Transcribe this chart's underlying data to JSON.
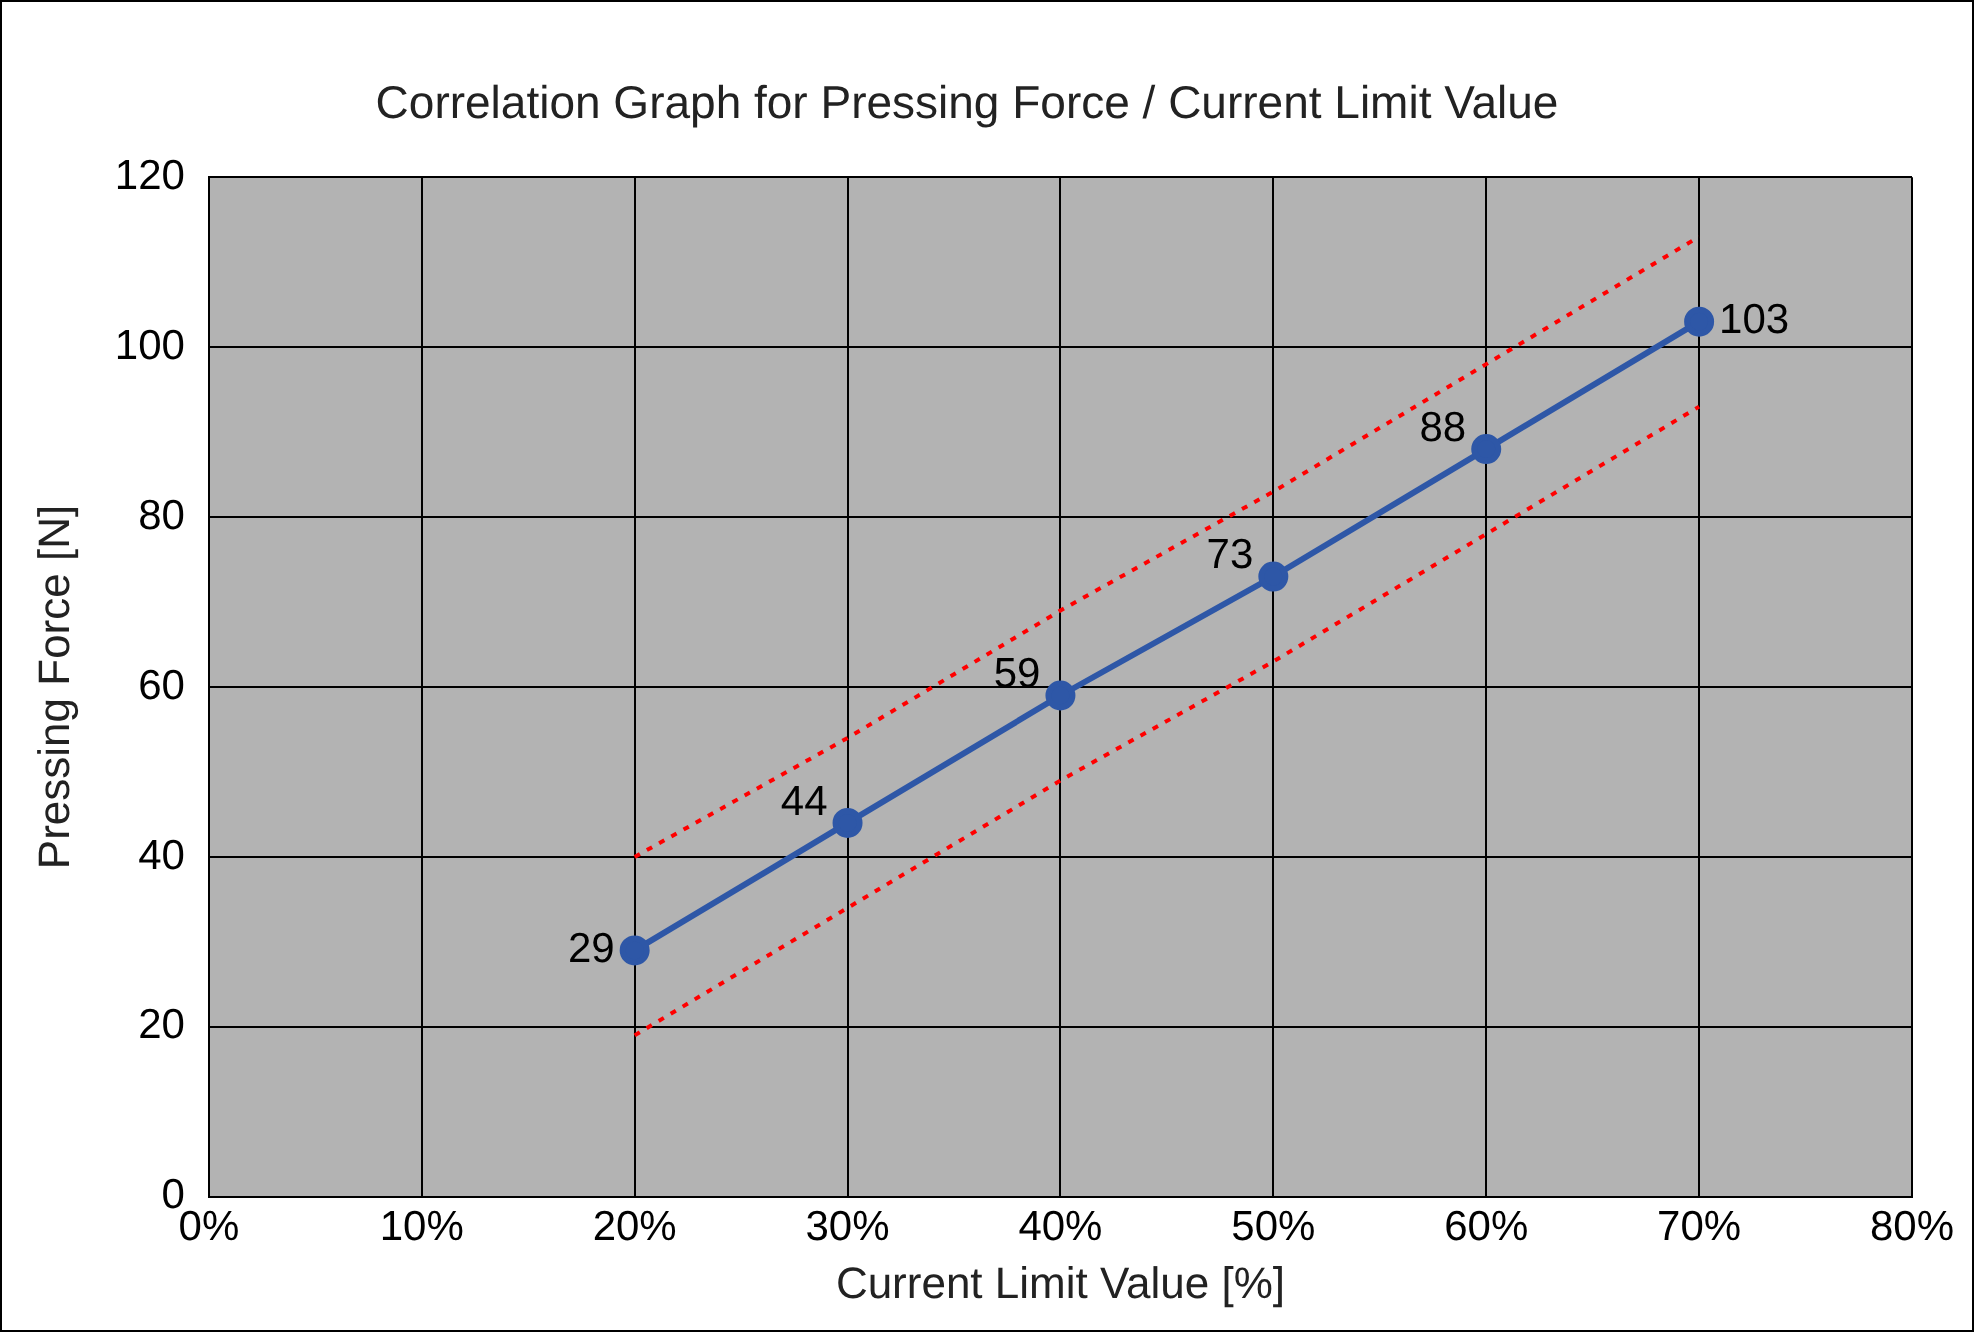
{
  "chart_data": {
    "type": "line",
    "title": "Correlation Graph for Pressing Force / Current Limit Value",
    "xlabel": "Current Limit Value [%]",
    "ylabel": "Pressing Force [N]",
    "x": [
      20,
      30,
      40,
      50,
      60,
      70
    ],
    "series": [
      {
        "color": "#2e57a7",
        "values": [
          29,
          44,
          59,
          73,
          88,
          103
        ],
        "value_labels": [
          "29",
          "44",
          "59",
          "73",
          "88",
          "103"
        ],
        "marker": "circle",
        "line_style": "solid"
      },
      {
        "color": "#ff0000",
        "values": [
          40,
          54,
          69,
          83,
          98,
          113
        ],
        "marker": "none",
        "line_style": "dotted"
      },
      {
        "color": "#ff0000",
        "values": [
          19,
          34,
          49,
          63,
          78,
          93
        ],
        "marker": "none",
        "line_style": "dotted"
      }
    ],
    "xlim": [
      0,
      80
    ],
    "xticks": [
      {
        "value": 0,
        "label": "0%"
      },
      {
        "value": 10,
        "label": "10%"
      },
      {
        "value": 20,
        "label": "20%"
      },
      {
        "value": 30,
        "label": "30%"
      },
      {
        "value": 40,
        "label": "40%"
      },
      {
        "value": 50,
        "label": "50%"
      },
      {
        "value": 60,
        "label": "60%"
      },
      {
        "value": 70,
        "label": "70%"
      },
      {
        "value": 80,
        "label": "80%"
      }
    ],
    "ylim": [
      0,
      120
    ],
    "yticks": [
      0,
      20,
      40,
      60,
      80,
      100,
      120
    ],
    "grid": true,
    "legend": false
  }
}
